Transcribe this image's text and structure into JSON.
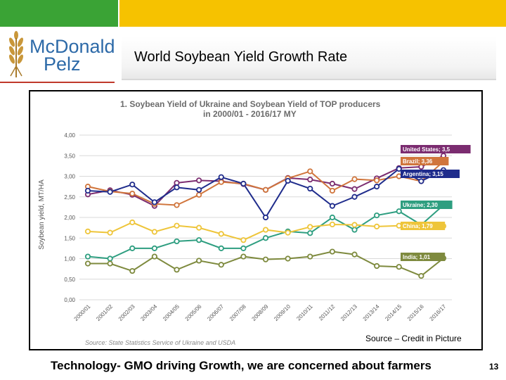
{
  "colors": {
    "green_bar": "#3aa335",
    "yellow_bar": "#f6c200",
    "logo_blue": "#2d6aa8",
    "logo_red": "#c0392b"
  },
  "logo": {
    "line1": "McDonald",
    "line2": "Pelz",
    "icon": "wheat-icon"
  },
  "slide": {
    "title": "World Soybean Yield Growth Rate",
    "source": "Source – Credit in Picture",
    "footer": "Technology- GMO driving Growth, we are concerned about farmers",
    "page_number": "13"
  },
  "chart_data": {
    "type": "line",
    "title_line1": "1. Soybean Yield of Ukraine and Soybean Yield of TOP producers",
    "title_line2": "in 2000/01 - 2016/17 MY",
    "ylabel": "Soybean yield, MT/HA",
    "xlabel": "",
    "ylim": [
      0,
      4
    ],
    "y_ticks": [
      "0,00",
      "0,50",
      "1,00",
      "1,50",
      "2,00",
      "2,50",
      "3,00",
      "3,50",
      "4,00"
    ],
    "categories": [
      "2000/01",
      "2001/02",
      "2002/03",
      "2003/04",
      "2004/05",
      "2005/06",
      "2006/07",
      "2007/08",
      "2008/09",
      "2009/10",
      "2010/11",
      "2011/12",
      "2012/13",
      "2013/14",
      "2014/15",
      "2015/16",
      "2016/17"
    ],
    "series": [
      {
        "name": "United States",
        "label": "United States; 3,5",
        "color": "#7b2c70",
        "values": [
          2.56,
          2.66,
          2.55,
          2.28,
          2.84,
          2.9,
          2.88,
          2.81,
          2.67,
          2.96,
          2.92,
          2.82,
          2.69,
          2.95,
          3.2,
          3.23,
          3.5
        ]
      },
      {
        "name": "Brazil",
        "label": "Brazil; 3,36",
        "color": "#d0753c",
        "values": [
          2.75,
          2.63,
          2.58,
          2.33,
          2.3,
          2.55,
          2.86,
          2.82,
          2.67,
          2.95,
          3.12,
          2.65,
          2.93,
          2.9,
          3.0,
          2.88,
          3.36
        ]
      },
      {
        "name": "Argentina",
        "label": "Argentina; 3,15",
        "color": "#1f2c8c",
        "values": [
          2.65,
          2.62,
          2.8,
          2.37,
          2.73,
          2.67,
          2.98,
          2.82,
          2.0,
          2.89,
          2.7,
          2.28,
          2.5,
          2.75,
          3.18,
          2.88,
          3.15
        ]
      },
      {
        "name": "Ukraine",
        "label": "Ukraine; 2,30",
        "color": "#2e9e80",
        "values": [
          1.05,
          1.0,
          1.25,
          1.25,
          1.42,
          1.45,
          1.25,
          1.25,
          1.5,
          1.66,
          1.62,
          2.0,
          1.7,
          2.05,
          2.15,
          1.82,
          2.3
        ]
      },
      {
        "name": "China",
        "label": "China; 1,79",
        "color": "#eec53a",
        "values": [
          1.66,
          1.63,
          1.88,
          1.65,
          1.8,
          1.75,
          1.6,
          1.45,
          1.7,
          1.63,
          1.77,
          1.83,
          1.82,
          1.78,
          1.8,
          1.8,
          1.79
        ]
      },
      {
        "name": "India",
        "label": "India; 1,01",
        "color": "#7e8a3e",
        "values": [
          0.88,
          0.88,
          0.7,
          1.05,
          0.73,
          0.95,
          0.85,
          1.05,
          0.98,
          1.0,
          1.05,
          1.17,
          1.1,
          0.82,
          0.8,
          0.58,
          1.01
        ]
      }
    ],
    "source_note": "Source: State Statistics Service of Ukraine and USDA"
  }
}
